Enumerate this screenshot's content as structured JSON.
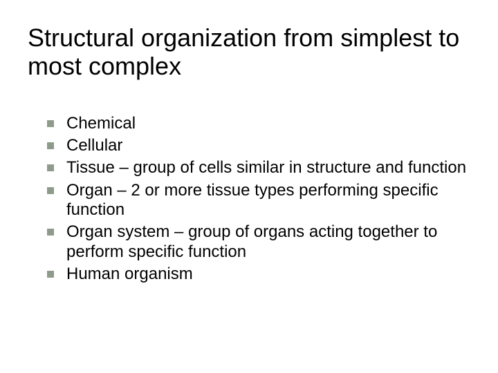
{
  "slide": {
    "title": "Structural organization from simplest to most complex",
    "bullet_color": "#8f9b8a",
    "bullets": [
      "Chemical",
      "Cellular",
      "Tissue – group of cells similar in structure and function",
      "Organ – 2 or more tissue types performing specific function",
      "Organ system – group of organs acting together to perform specific function",
      "Human organism"
    ]
  }
}
